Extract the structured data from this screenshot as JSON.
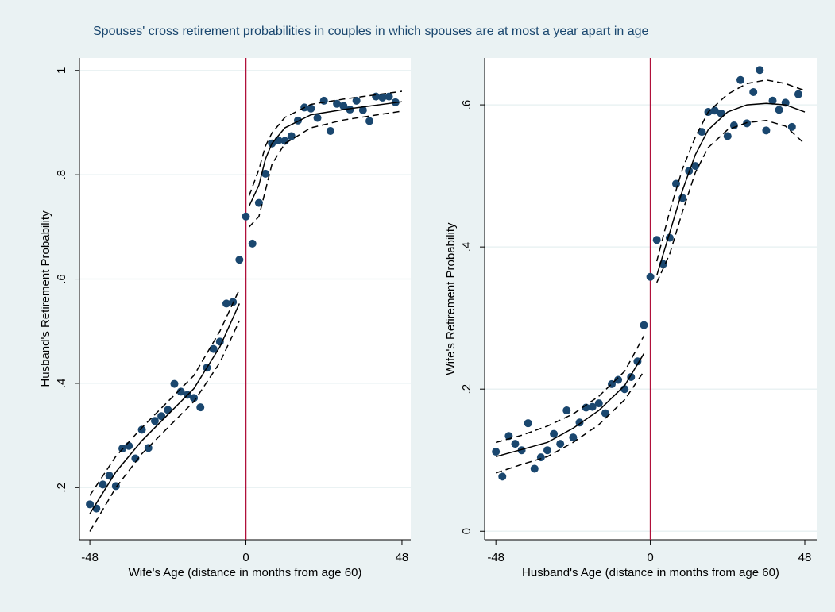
{
  "title": "Spouses' cross retirement probabilities in couples in which spouses are at most a year apart in age",
  "chart_data": [
    {
      "type": "scatter",
      "x_label": "Wife's Age (distance in months from age 60)",
      "y_label": "Husband's Retirement Probability",
      "xlim": [
        -51.2,
        50.7
      ],
      "ylim": [
        0.1,
        1.024
      ],
      "xticks": [
        -48,
        0,
        48
      ],
      "yticks": [
        {
          "value": 0.2,
          "label": ".2"
        },
        {
          "value": 0.4,
          "label": ".4"
        },
        {
          "value": 0.6,
          "label": ".6"
        },
        {
          "value": 0.8,
          "label": ".8"
        },
        1
      ],
      "vline": 0,
      "vline_color": "#b0103a",
      "series": [
        {
          "kind": "points",
          "color": "#1a476f",
          "x": [
            -48,
            -46,
            -44,
            -42,
            -40,
            -38,
            -36,
            -34,
            -32,
            -30,
            -28,
            -26,
            -24,
            -22,
            -20,
            -18,
            -16,
            -14,
            -12,
            -10,
            -8,
            -6,
            -4,
            -2,
            0,
            2,
            4,
            6,
            8,
            10,
            12,
            14,
            16,
            18,
            20,
            22,
            24,
            26,
            28,
            30,
            32,
            34,
            36,
            38,
            40,
            42,
            44,
            46
          ],
          "values": [
            0.168,
            0.16,
            0.206,
            0.223,
            0.203,
            0.275,
            0.28,
            0.256,
            0.311,
            0.276,
            0.328,
            0.337,
            0.349,
            0.399,
            0.384,
            0.378,
            0.372,
            0.354,
            0.43,
            0.466,
            0.48,
            0.553,
            0.556,
            0.637,
            0.72,
            0.668,
            0.746,
            0.802,
            0.86,
            0.866,
            0.865,
            0.874,
            0.904,
            0.929,
            0.927,
            0.909,
            0.942,
            0.884,
            0.936,
            0.932,
            0.925,
            0.942,
            0.924,
            0.903,
            0.95,
            0.948,
            0.95,
            0.939
          ]
        },
        {
          "kind": "line",
          "dash": false,
          "color": "#000000",
          "x": [
            -48,
            -40,
            -32,
            -24,
            -16,
            -8,
            -2,
            0,
            1,
            4,
            6,
            8,
            12,
            20,
            30,
            48
          ],
          "values": [
            0.15,
            0.23,
            0.29,
            0.34,
            0.39,
            0.47,
            0.553,
            null,
            0.74,
            0.78,
            0.83,
            0.86,
            0.89,
            0.915,
            0.925,
            0.94
          ]
        },
        {
          "kind": "line",
          "dash": true,
          "color": "#000000",
          "x": [
            -48,
            -40,
            -32,
            -24,
            -16,
            -8,
            -2,
            0,
            1,
            4,
            6,
            8,
            12,
            20,
            30,
            48
          ],
          "values": [
            0.185,
            0.26,
            0.315,
            0.365,
            0.415,
            0.5,
            0.58,
            null,
            0.76,
            0.81,
            0.855,
            0.88,
            0.91,
            0.935,
            0.945,
            0.96
          ]
        },
        {
          "kind": "line",
          "dash": true,
          "color": "#000000",
          "x": [
            -48,
            -40,
            -32,
            -24,
            -16,
            -8,
            -2,
            0,
            1,
            4,
            6,
            8,
            12,
            20,
            30,
            48
          ],
          "values": [
            0.116,
            0.2,
            0.265,
            0.315,
            0.365,
            0.44,
            0.52,
            null,
            0.7,
            0.72,
            0.77,
            0.82,
            0.86,
            0.89,
            0.905,
            0.922
          ]
        }
      ]
    },
    {
      "type": "scatter",
      "x_label": "Husband's Age (distance in months from age 60)",
      "y_label": "Wife's Retirement Probability",
      "xlim": [
        -51.5,
        51.7
      ],
      "ylim": [
        -0.012,
        0.666
      ],
      "xticks": [
        -48,
        0,
        48
      ],
      "yticks": [
        0,
        {
          "value": 0.2,
          "label": ".2"
        },
        {
          "value": 0.4,
          "label": ".4"
        },
        {
          "value": 0.6,
          "label": ".6"
        }
      ],
      "vline": 0,
      "vline_color": "#b0103a",
      "series": [
        {
          "kind": "points",
          "color": "#1a476f",
          "x": [
            -48,
            -46,
            -44,
            -42,
            -40,
            -38,
            -36,
            -34,
            -32,
            -30,
            -28,
            -26,
            -24,
            -22,
            -20,
            -18,
            -16,
            -14,
            -12,
            -10,
            -8,
            -6,
            -4,
            -2,
            0,
            2,
            4,
            6,
            8,
            10,
            12,
            14,
            16,
            18,
            20,
            22,
            24,
            26,
            28,
            30,
            32,
            34,
            36,
            38,
            40,
            42,
            44,
            46
          ],
          "values": [
            0.112,
            0.077,
            0.134,
            0.123,
            0.114,
            0.152,
            0.088,
            0.104,
            0.114,
            0.137,
            0.123,
            0.17,
            0.132,
            0.153,
            0.174,
            0.175,
            0.18,
            0.166,
            0.207,
            0.213,
            0.2,
            0.217,
            0.239,
            0.29,
            0.358,
            0.41,
            0.376,
            0.413,
            0.489,
            0.469,
            0.507,
            0.514,
            0.562,
            0.59,
            0.592,
            0.588,
            0.556,
            0.571,
            0.635,
            0.574,
            0.618,
            0.649,
            0.564,
            0.606,
            0.593,
            0.603,
            0.569,
            0.615
          ]
        },
        {
          "kind": "line",
          "dash": false,
          "color": "#000000",
          "x": [
            -48,
            -40,
            -32,
            -24,
            -16,
            -8,
            -2,
            0,
            2,
            6,
            10,
            14,
            18,
            24,
            30,
            36,
            42,
            48
          ],
          "values": [
            0.105,
            0.115,
            0.125,
            0.145,
            0.17,
            0.205,
            0.25,
            null,
            0.36,
            0.42,
            0.48,
            0.53,
            0.565,
            0.59,
            0.6,
            0.602,
            0.6,
            0.59
          ]
        },
        {
          "kind": "line",
          "dash": true,
          "color": "#000000",
          "x": [
            -48,
            -40,
            -32,
            -24,
            -16,
            -8,
            -2,
            0,
            2,
            6,
            10,
            14,
            18,
            24,
            30,
            36,
            42,
            48
          ],
          "values": [
            0.125,
            0.135,
            0.148,
            0.165,
            0.19,
            0.225,
            0.275,
            null,
            0.38,
            0.45,
            0.51,
            0.555,
            0.59,
            0.615,
            0.63,
            0.635,
            0.63,
            0.62
          ]
        },
        {
          "kind": "line",
          "dash": true,
          "color": "#000000",
          "x": [
            -48,
            -40,
            -32,
            -24,
            -16,
            -8,
            -2,
            0,
            2,
            6,
            10,
            14,
            18,
            24,
            30,
            36,
            42,
            48
          ],
          "values": [
            0.082,
            0.094,
            0.105,
            0.125,
            0.15,
            0.185,
            0.225,
            null,
            0.35,
            0.39,
            0.45,
            0.505,
            0.54,
            0.565,
            0.575,
            0.578,
            0.57,
            0.545
          ]
        }
      ]
    }
  ]
}
